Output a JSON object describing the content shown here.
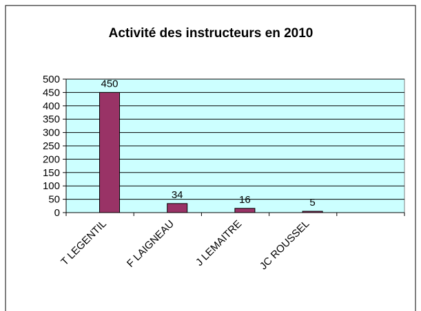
{
  "chart_data": {
    "type": "bar",
    "title": "Activité des instructeurs en 2010",
    "categories": [
      "T LEGENTIL",
      "F LAIGNEAU",
      "J LEMAITRE",
      "JC ROUSSEL",
      null
    ],
    "values": [
      450,
      34,
      16,
      5,
      null
    ],
    "color": "#993366",
    "ylim": [
      0,
      500
    ],
    "yticks": [
      0,
      50,
      100,
      150,
      200,
      250,
      300,
      350,
      400,
      450,
      500
    ],
    "grid": true,
    "plot_background": "#ccffff"
  }
}
